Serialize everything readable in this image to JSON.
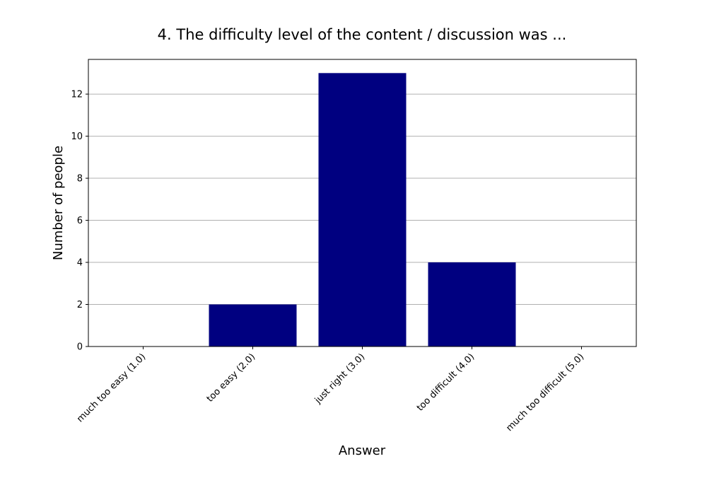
{
  "chart_data": {
    "type": "bar",
    "title": "4. The difficulty level of the content / discussion was ...",
    "xlabel": "Answer",
    "ylabel": "Number of people",
    "categories": [
      "much too easy (1.0)",
      "too easy (2.0)",
      "just right (3.0)",
      "too difficult (4.0)",
      "much too difficult (5.0)"
    ],
    "values": [
      0,
      2,
      13,
      4,
      0
    ],
    "ylim": [
      0,
      13.65
    ],
    "yticks": [
      0,
      2,
      4,
      6,
      8,
      10,
      12
    ],
    "grid": "y",
    "bar_color": "#000080",
    "grid_color": "#b0b0b0"
  }
}
